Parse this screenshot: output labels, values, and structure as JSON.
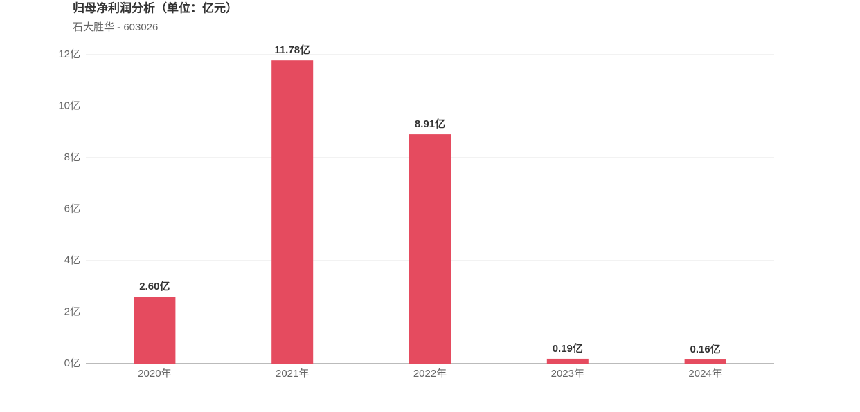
{
  "chart_data": {
    "type": "bar",
    "title": "归母净利润分析（单位：亿元）",
    "subtitle": "石大胜华 - 603026",
    "categories": [
      "2020年",
      "2021年",
      "2022年",
      "2023年",
      "2024年"
    ],
    "values": [
      2.6,
      11.78,
      8.91,
      0.19,
      0.16
    ],
    "value_labels": [
      "2.60亿",
      "11.78亿",
      "8.91亿",
      "0.19亿",
      "0.16亿"
    ],
    "color": "#e54b5f",
    "ylim": [
      0,
      12
    ],
    "yticks": [
      {
        "value": 0,
        "label": "0亿"
      },
      {
        "value": 2,
        "label": "2亿"
      },
      {
        "value": 4,
        "label": "4亿"
      },
      {
        "value": 6,
        "label": "6亿"
      },
      {
        "value": 8,
        "label": "8亿"
      },
      {
        "value": 10,
        "label": "10亿"
      },
      {
        "value": 12,
        "label": "12亿"
      }
    ],
    "grid": true
  }
}
